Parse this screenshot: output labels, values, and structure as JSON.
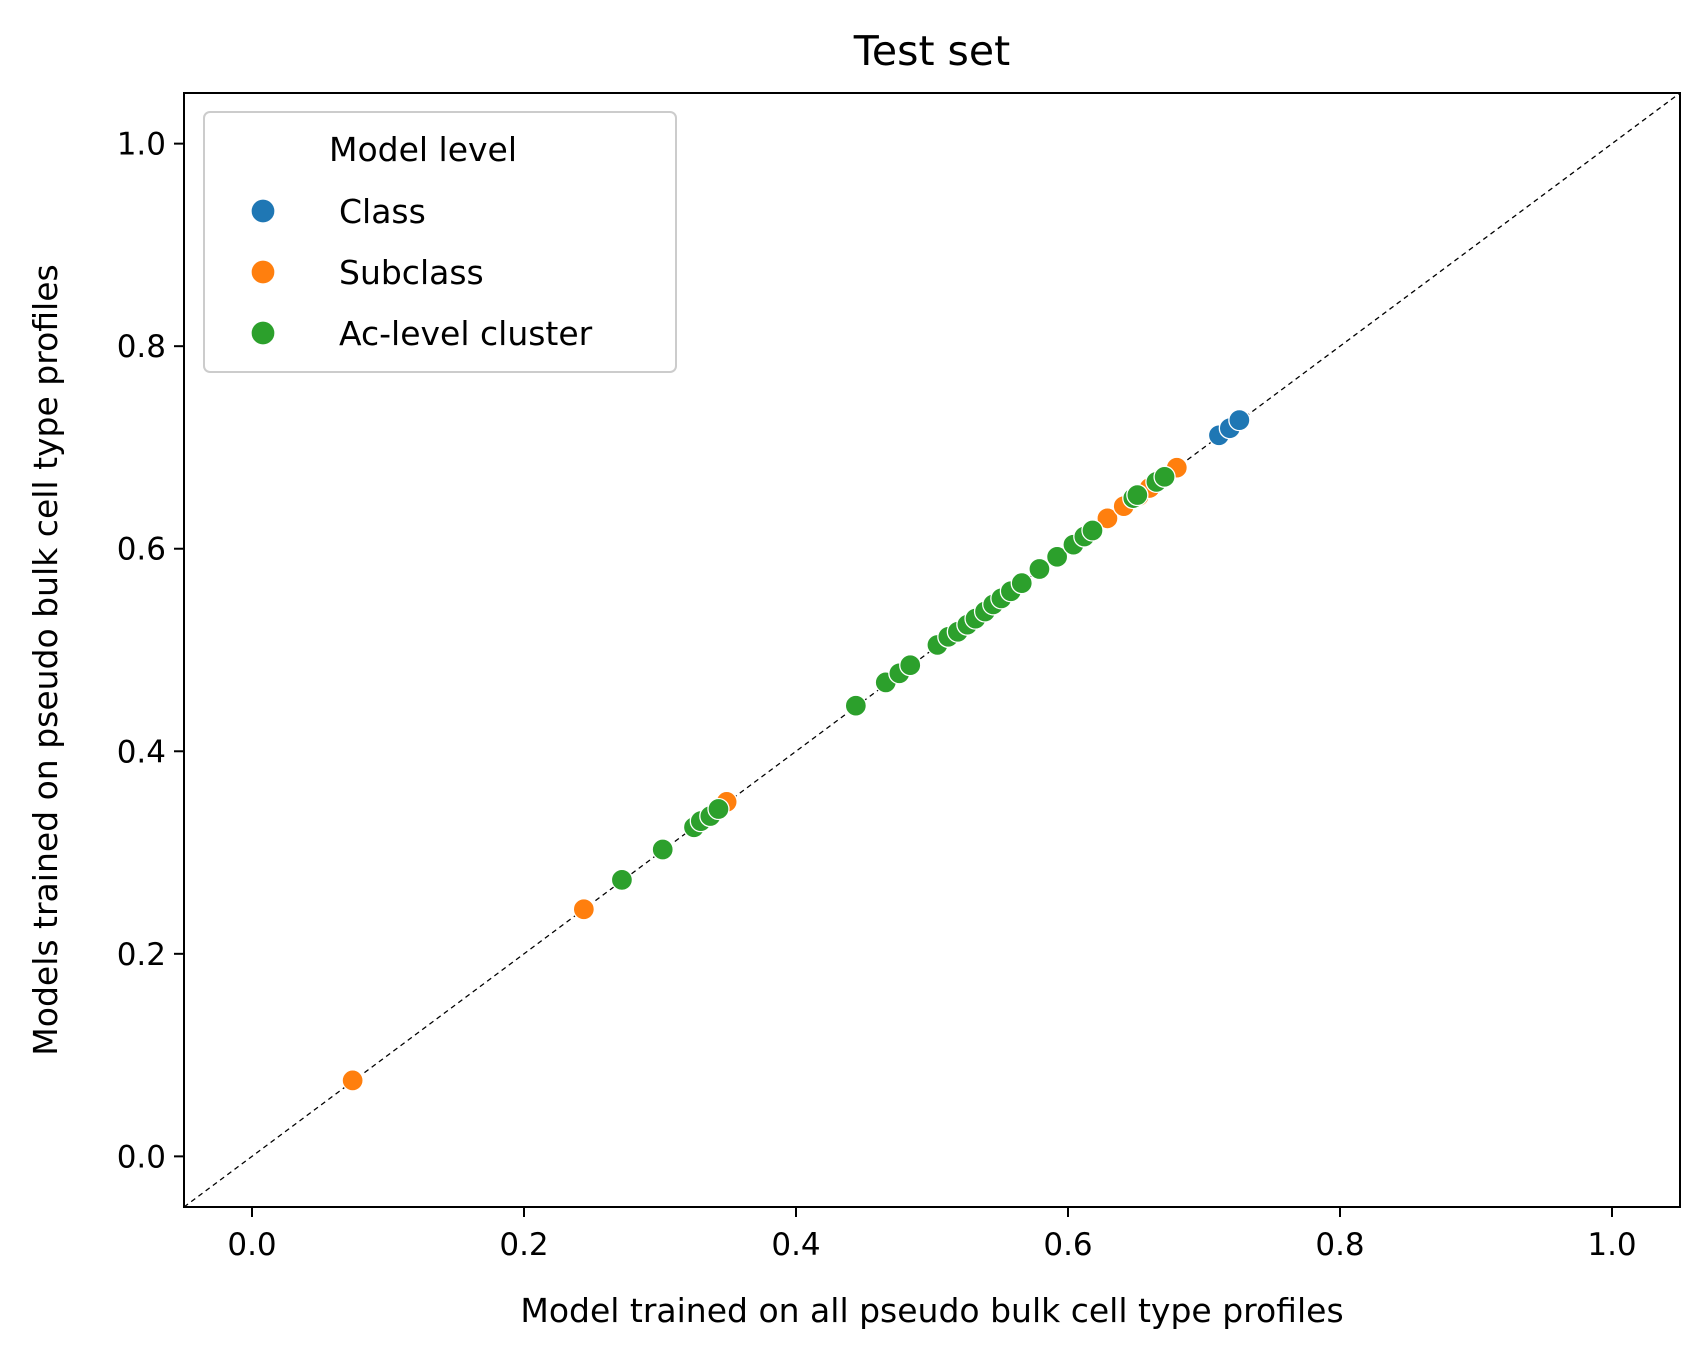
{
  "chart_data": {
    "type": "scatter",
    "title": "Test set",
    "xlabel": "Model trained on all pseudo bulk cell type profiles",
    "ylabel": "Models trained on pseudo bulk cell type profiles",
    "xlim": [
      -0.05,
      1.05
    ],
    "ylim": [
      -0.05,
      1.05
    ],
    "xticks": [
      "0.0",
      "0.2",
      "0.4",
      "0.6",
      "0.8",
      "1.0"
    ],
    "yticks": [
      "0.0",
      "0.2",
      "0.4",
      "0.6",
      "0.8",
      "1.0"
    ],
    "grid": false,
    "reference_line": "y = x (dashed)",
    "legend": {
      "title": "Model level",
      "placement": "upper-left"
    },
    "series": [
      {
        "name": "Class",
        "color": "#1f77b4",
        "points": [
          [
            0.711,
            0.712
          ],
          [
            0.719,
            0.719
          ],
          [
            0.726,
            0.727
          ]
        ]
      },
      {
        "name": "Subclass",
        "color": "#ff7f0e",
        "points": [
          [
            0.074,
            0.075
          ],
          [
            0.244,
            0.244
          ],
          [
            0.349,
            0.35
          ],
          [
            0.629,
            0.63
          ],
          [
            0.641,
            0.642
          ],
          [
            0.652,
            0.652
          ],
          [
            0.66,
            0.66
          ],
          [
            0.667,
            0.668
          ],
          [
            0.68,
            0.68
          ]
        ]
      },
      {
        "name": "Ac-level cluster",
        "color": "#2ca02c",
        "points": [
          [
            0.272,
            0.273
          ],
          [
            0.302,
            0.303
          ],
          [
            0.325,
            0.325
          ],
          [
            0.33,
            0.331
          ],
          [
            0.337,
            0.336
          ],
          [
            0.343,
            0.343
          ],
          [
            0.444,
            0.445
          ],
          [
            0.466,
            0.468
          ],
          [
            0.476,
            0.477
          ],
          [
            0.484,
            0.485
          ],
          [
            0.504,
            0.505
          ],
          [
            0.512,
            0.513
          ],
          [
            0.519,
            0.518
          ],
          [
            0.526,
            0.525
          ],
          [
            0.532,
            0.531
          ],
          [
            0.539,
            0.538
          ],
          [
            0.545,
            0.545
          ],
          [
            0.551,
            0.551
          ],
          [
            0.558,
            0.558
          ],
          [
            0.566,
            0.566
          ],
          [
            0.579,
            0.58
          ],
          [
            0.592,
            0.592
          ],
          [
            0.604,
            0.604
          ],
          [
            0.612,
            0.612
          ],
          [
            0.618,
            0.618
          ],
          [
            0.648,
            0.65
          ],
          [
            0.651,
            0.653
          ],
          [
            0.665,
            0.666
          ],
          [
            0.671,
            0.671
          ]
        ]
      }
    ]
  }
}
